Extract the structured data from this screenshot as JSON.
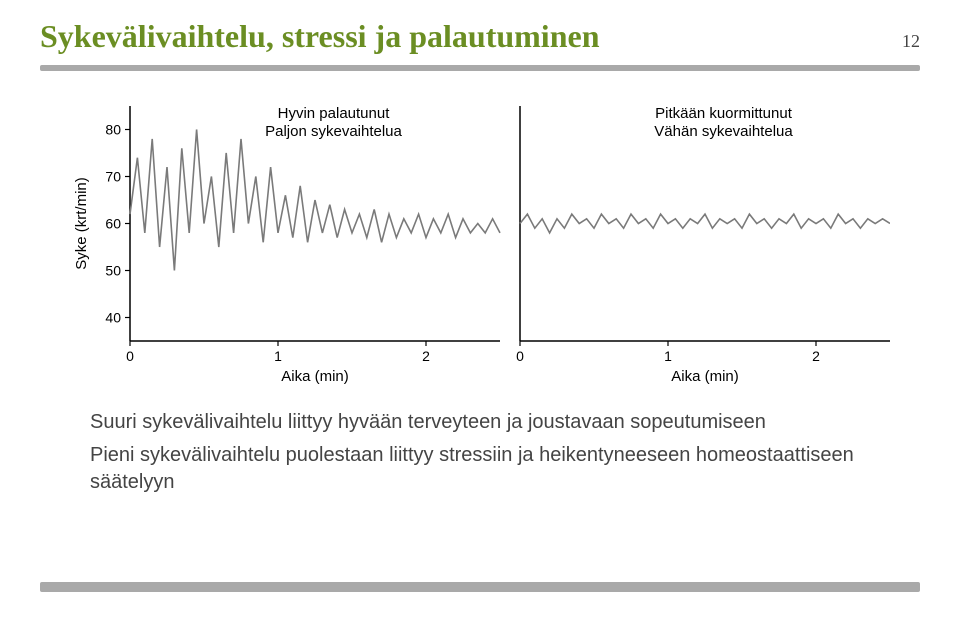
{
  "title": "Sykevälivaihtelu, stressi ja palautuminen",
  "title_color": "#6b8e23",
  "title_fontsize": 32,
  "page_number": "12",
  "page_number_fontsize": 18,
  "underline_color": "#a9a9a9",
  "body": {
    "fontsize": 20,
    "line1": "Suuri sykevälivaihtelu liittyy hyvään terveyteen ja joustavaan sopeutumiseen",
    "line2": "Pieni sykevälivaihtelu puolestaan liittyy stressiin ja heikentyneeseen homeostaattiseen säätelyyn"
  },
  "charts": {
    "ylabel": "Syke (krt/min)",
    "xlabel": "Aika (min)",
    "label_fontsize": 15,
    "tick_fontsize": 14,
    "annotation_fontsize": 15,
    "axis_color": "#000000",
    "line_color": "#7a7a7a",
    "line_width": 1.6,
    "background": "#ffffff",
    "yticks": [
      40,
      50,
      60,
      70,
      80
    ],
    "xticks": [
      0,
      1,
      2
    ],
    "xlim": [
      0,
      2.5
    ],
    "ylim": [
      35,
      85
    ],
    "left": {
      "ann1": "Hyvin palautunut",
      "ann2": "Paljon sykevaihtelua",
      "series": [
        [
          0.0,
          62
        ],
        [
          0.05,
          74
        ],
        [
          0.1,
          58
        ],
        [
          0.15,
          78
        ],
        [
          0.2,
          55
        ],
        [
          0.25,
          72
        ],
        [
          0.3,
          50
        ],
        [
          0.35,
          76
        ],
        [
          0.4,
          58
        ],
        [
          0.45,
          80
        ],
        [
          0.5,
          60
        ],
        [
          0.55,
          70
        ],
        [
          0.6,
          55
        ],
        [
          0.65,
          75
        ],
        [
          0.7,
          58
        ],
        [
          0.75,
          78
        ],
        [
          0.8,
          60
        ],
        [
          0.85,
          70
        ],
        [
          0.9,
          56
        ],
        [
          0.95,
          72
        ],
        [
          1.0,
          58
        ],
        [
          1.05,
          66
        ],
        [
          1.1,
          57
        ],
        [
          1.15,
          68
        ],
        [
          1.2,
          56
        ],
        [
          1.25,
          65
        ],
        [
          1.3,
          58
        ],
        [
          1.35,
          64
        ],
        [
          1.4,
          57
        ],
        [
          1.45,
          63
        ],
        [
          1.5,
          58
        ],
        [
          1.55,
          62
        ],
        [
          1.6,
          57
        ],
        [
          1.65,
          63
        ],
        [
          1.7,
          56
        ],
        [
          1.75,
          62
        ],
        [
          1.8,
          57
        ],
        [
          1.85,
          61
        ],
        [
          1.9,
          58
        ],
        [
          1.95,
          62
        ],
        [
          2.0,
          57
        ],
        [
          2.05,
          61
        ],
        [
          2.1,
          58
        ],
        [
          2.15,
          62
        ],
        [
          2.2,
          57
        ],
        [
          2.25,
          61
        ],
        [
          2.3,
          58
        ],
        [
          2.35,
          60
        ],
        [
          2.4,
          58
        ],
        [
          2.45,
          61
        ],
        [
          2.5,
          58
        ]
      ]
    },
    "right": {
      "ann1": "Pitkään kuormittunut",
      "ann2": "Vähän sykevaihtelua",
      "series": [
        [
          0.0,
          60
        ],
        [
          0.05,
          62
        ],
        [
          0.1,
          59
        ],
        [
          0.15,
          61
        ],
        [
          0.2,
          58
        ],
        [
          0.25,
          61
        ],
        [
          0.3,
          59
        ],
        [
          0.35,
          62
        ],
        [
          0.4,
          60
        ],
        [
          0.45,
          61
        ],
        [
          0.5,
          59
        ],
        [
          0.55,
          62
        ],
        [
          0.6,
          60
        ],
        [
          0.65,
          61
        ],
        [
          0.7,
          59
        ],
        [
          0.75,
          62
        ],
        [
          0.8,
          60
        ],
        [
          0.85,
          61
        ],
        [
          0.9,
          59
        ],
        [
          0.95,
          62
        ],
        [
          1.0,
          60
        ],
        [
          1.05,
          61
        ],
        [
          1.1,
          59
        ],
        [
          1.15,
          61
        ],
        [
          1.2,
          60
        ],
        [
          1.25,
          62
        ],
        [
          1.3,
          59
        ],
        [
          1.35,
          61
        ],
        [
          1.4,
          60
        ],
        [
          1.45,
          61
        ],
        [
          1.5,
          59
        ],
        [
          1.55,
          62
        ],
        [
          1.6,
          60
        ],
        [
          1.65,
          61
        ],
        [
          1.7,
          59
        ],
        [
          1.75,
          61
        ],
        [
          1.8,
          60
        ],
        [
          1.85,
          62
        ],
        [
          1.9,
          59
        ],
        [
          1.95,
          61
        ],
        [
          2.0,
          60
        ],
        [
          2.05,
          61
        ],
        [
          2.1,
          59
        ],
        [
          2.15,
          62
        ],
        [
          2.2,
          60
        ],
        [
          2.25,
          61
        ],
        [
          2.3,
          59
        ],
        [
          2.35,
          61
        ],
        [
          2.4,
          60
        ],
        [
          2.45,
          61
        ],
        [
          2.5,
          60
        ]
      ]
    }
  }
}
